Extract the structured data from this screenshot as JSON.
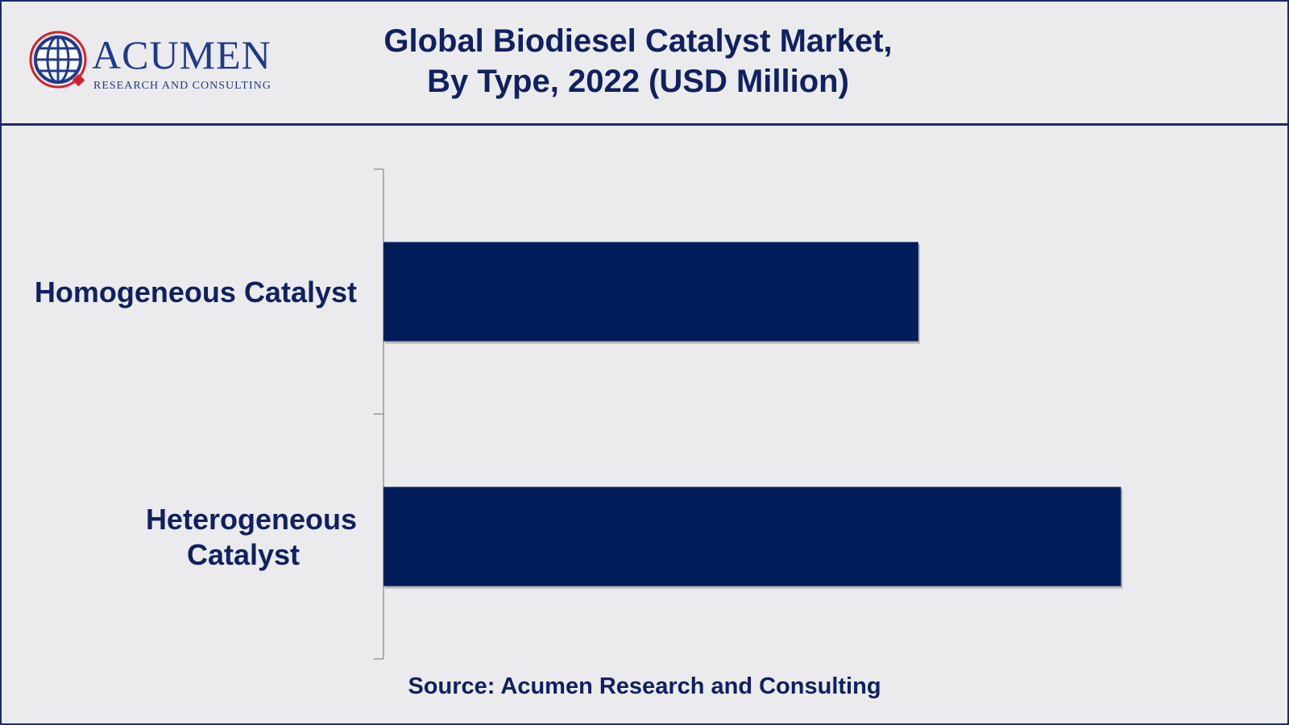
{
  "logo": {
    "word": "ACUMEN",
    "subtitle": "RESEARCH AND CONSULTING"
  },
  "chart_data": {
    "type": "bar",
    "orientation": "horizontal",
    "title": [
      "Global Biodiesel Catalyst Market,",
      "By Type, 2022 (USD Million)"
    ],
    "categories": [
      "Homogeneous Catalyst",
      "Heterogeneous Catalyst"
    ],
    "values": [
      66,
      91
    ],
    "xlim": [
      0,
      100
    ],
    "grid": false,
    "legend": "none",
    "bar_color": "#001d5a"
  },
  "source": "Source: Acumen Research and Consulting"
}
